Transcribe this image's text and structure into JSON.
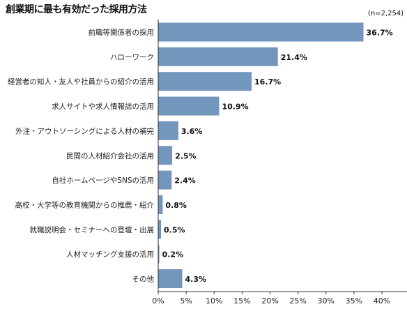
{
  "chart_data": {
    "type": "bar",
    "orientation": "horizontal",
    "title": "創業期に最も有効だった採用方法",
    "note": "(n=2,254)",
    "categories": [
      "前職等関係者の採用",
      "ハローワーク",
      "経営者の知人・友人や社員からの紹介の活用",
      "求人サイトや求人情報誌の活用",
      "外注・アウトソーシングによる人材の補完",
      "民間の人材紹介会社の活用",
      "自社ホームページやSNSの活用",
      "高校・大学等の教育機関からの推薦・紹介",
      "就職説明会・セミナーへの登壇・出展",
      "人材マッチング支援の活用",
      "その他"
    ],
    "values": [
      36.7,
      21.4,
      16.7,
      10.9,
      3.6,
      2.5,
      2.4,
      0.8,
      0.5,
      0.2,
      4.3
    ],
    "value_labels": [
      "36.7%",
      "21.4%",
      "16.7%",
      "10.9%",
      "3.6%",
      "2.5%",
      "2.4%",
      "0.8%",
      "0.5%",
      "0.2%",
      "4.3%"
    ],
    "xlim": [
      0,
      40
    ],
    "x_ticks": [
      0,
      5,
      10,
      15,
      20,
      25,
      30,
      35,
      40
    ],
    "x_tick_labels": [
      "0%",
      "5%",
      "10%",
      "15%",
      "20%",
      "25%",
      "30%",
      "35%",
      "40%"
    ],
    "grid": false,
    "bar_color": "#7396bd"
  }
}
